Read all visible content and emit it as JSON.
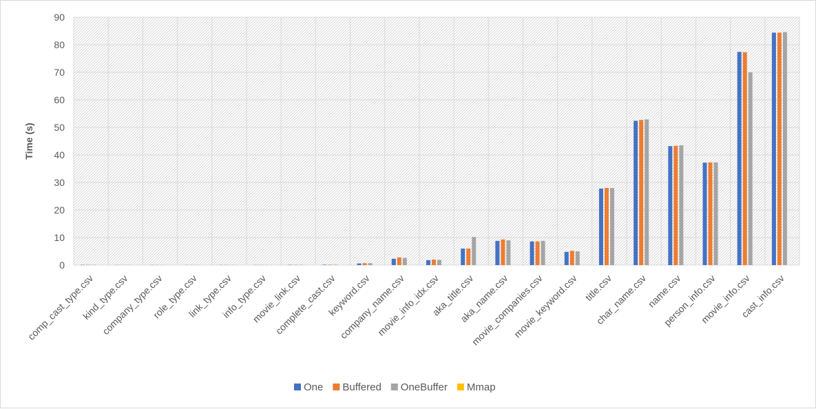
{
  "chart_data": {
    "type": "bar",
    "title": "",
    "xlabel": "",
    "ylabel": "Time (s)",
    "ylim": [
      0,
      90
    ],
    "yticks": [
      0,
      10,
      20,
      30,
      40,
      50,
      60,
      70,
      80,
      90
    ],
    "grid": true,
    "legend_position": "bottom",
    "categories": [
      "comp_cast_type.csv",
      "kind_type.csv",
      "company_type.csv",
      "role_type.csv",
      "link_type.csv",
      "info_type.csv",
      "movie_link.csv",
      "complete_cast.csv",
      "keyword.csv",
      "company_name.csv",
      "movie_info_idx.csv",
      "aka_title.csv",
      "aka_name.csv",
      "movie_companies.csv",
      "movie_keyword.csv",
      "title.csv",
      "char_name.csv",
      "name.csv",
      "person_info.csv",
      "movie_info.csv",
      "cast_info.csv"
    ],
    "series": [
      {
        "name": "One",
        "color": "#4472c4",
        "values": [
          0.1,
          0.05,
          0.05,
          0.05,
          0.05,
          0.05,
          0.1,
          0.15,
          0.6,
          2.3,
          1.8,
          6.0,
          8.8,
          8.6,
          4.8,
          27.8,
          52.4,
          43.2,
          37.2,
          77.4,
          84.4
        ]
      },
      {
        "name": "Buffered",
        "color": "#ed7d31",
        "values": [
          0.1,
          0.05,
          0.05,
          0.05,
          0.05,
          0.05,
          0.1,
          0.15,
          0.7,
          2.8,
          2.0,
          6.0,
          9.3,
          8.6,
          5.2,
          28.0,
          52.7,
          43.3,
          37.3,
          77.3,
          84.4
        ]
      },
      {
        "name": "OneBuffer",
        "color": "#a5a5a5",
        "values": [
          0.1,
          0.05,
          0.05,
          0.05,
          0.05,
          0.05,
          0.1,
          0.15,
          0.7,
          2.6,
          1.9,
          10.2,
          9.0,
          8.8,
          5.0,
          28.0,
          52.9,
          43.5,
          37.3,
          70.0,
          84.6
        ]
      },
      {
        "name": "Mmap",
        "color": "#ffc000",
        "values": [
          0,
          0,
          0,
          0,
          0,
          0,
          0,
          0,
          0,
          0,
          0,
          0,
          0,
          0,
          0,
          0,
          0,
          0,
          0,
          0,
          0
        ]
      }
    ]
  }
}
